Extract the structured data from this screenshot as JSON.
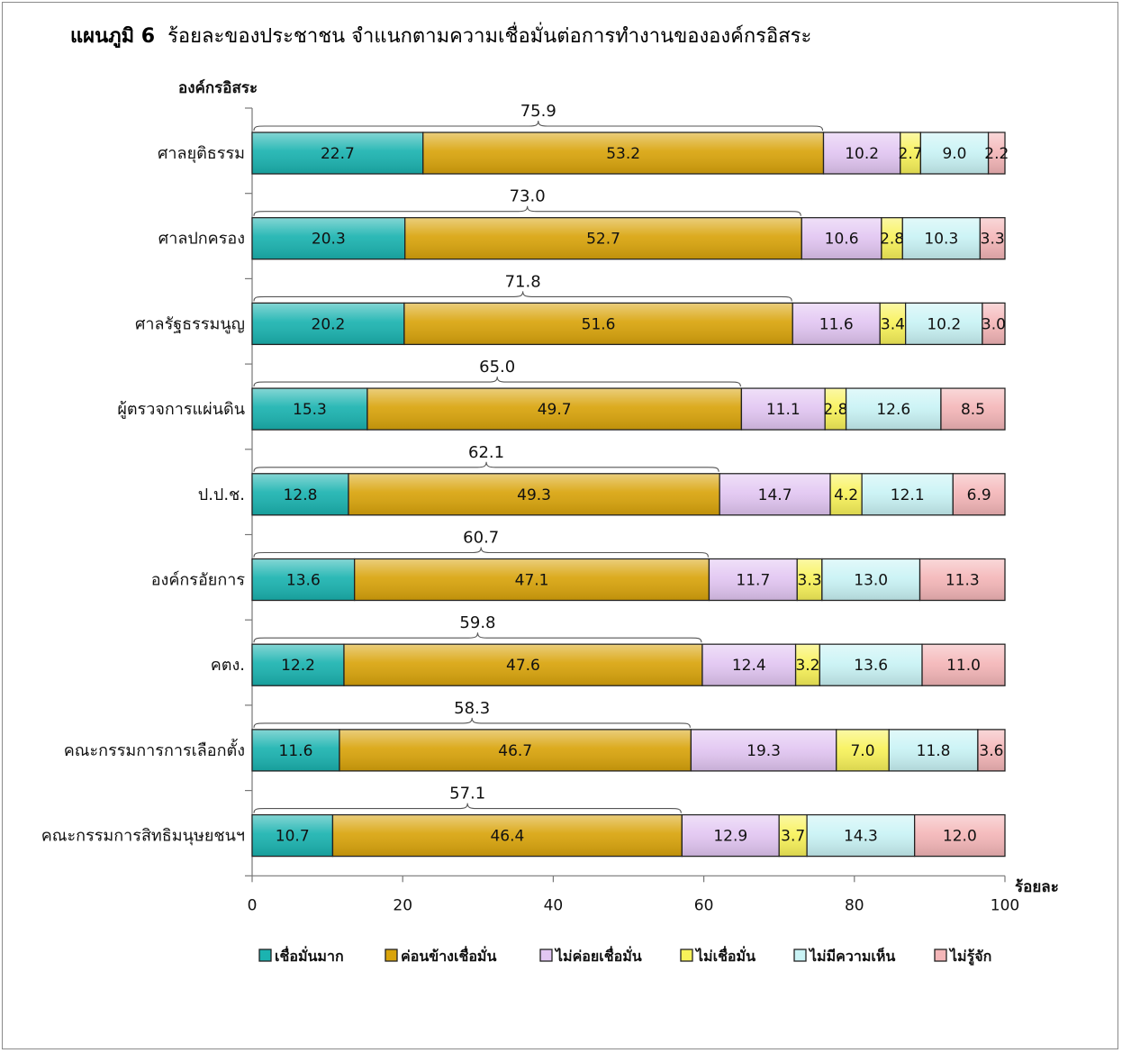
{
  "header": {
    "figure_number": "แผนภูมิ 6",
    "title": "ร้อยละของประชาชน  จำแนกตามความเชื่อมั่นต่อการทำงานขององค์กรอิสระ"
  },
  "chart_data": {
    "type": "bar",
    "orientation": "horizontal",
    "stacked": true,
    "ylabel": "องค์กรอิสระ",
    "xlabel": "ร้อยละ",
    "xlim": [
      0,
      100
    ],
    "xticks": [
      0,
      20,
      40,
      60,
      80,
      100
    ],
    "legend_position": "bottom",
    "categories": [
      "ศาลยุติธรรม",
      "ศาลปกครอง",
      "ศาลรัฐธรรมนูญ",
      "ผู้ตรวจการแผ่นดิน",
      "ป.ป.ช.",
      "องค์กรอัยการ",
      "คตง.",
      "คณะกรรมการการเลือกตั้ง",
      "คณะกรรมการสิทธิมนุษยชนฯ"
    ],
    "series": [
      {
        "name": "เชื่อมั่นมาก",
        "color": "#1bb3b0",
        "values": [
          22.7,
          20.3,
          20.2,
          15.3,
          12.8,
          13.6,
          12.2,
          11.6,
          10.7
        ]
      },
      {
        "name": "ค่อนข้างเชื่อมั่น",
        "color": "#d9a40c",
        "values": [
          53.2,
          52.7,
          51.6,
          49.7,
          49.3,
          47.1,
          47.6,
          46.7,
          46.4
        ]
      },
      {
        "name": "ไม่ค่อยเชื่อมั่น",
        "color": "#e2c6f2",
        "values": [
          10.2,
          10.6,
          11.6,
          11.1,
          14.7,
          11.7,
          12.4,
          19.3,
          12.9
        ]
      },
      {
        "name": "ไม่เชื่อมั่น",
        "color": "#f8f25a",
        "values": [
          2.7,
          2.8,
          3.4,
          2.8,
          4.2,
          3.3,
          3.2,
          7.0,
          3.7
        ]
      },
      {
        "name": "ไม่มีความเห็น",
        "color": "#c9f3f5",
        "values": [
          9.0,
          10.3,
          10.2,
          12.6,
          12.1,
          13.0,
          13.6,
          11.8,
          14.3
        ]
      },
      {
        "name": "ไม่รู้จัก",
        "color": "#f4b6b8",
        "values": [
          2.2,
          3.3,
          3.0,
          8.5,
          6.9,
          11.3,
          11.0,
          3.6,
          12.0
        ]
      }
    ],
    "bracket_totals": [
      75.9,
      73.0,
      71.8,
      65.0,
      62.1,
      60.7,
      59.8,
      58.3,
      57.1
    ]
  }
}
